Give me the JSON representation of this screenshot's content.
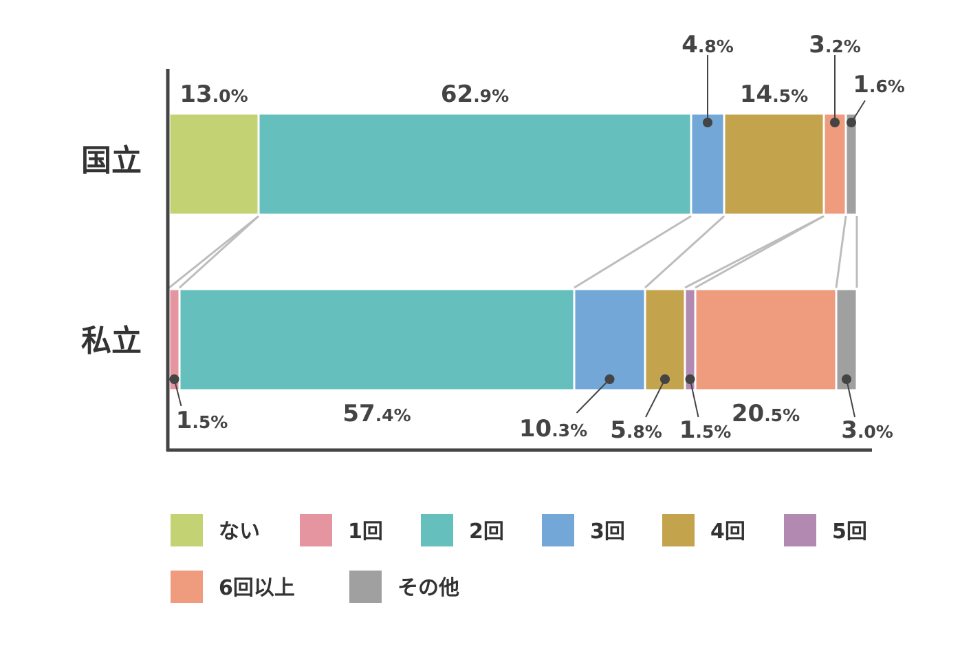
{
  "chart_data": {
    "type": "bar",
    "stacked": true,
    "orientation": "horizontal",
    "normalized_to": 100,
    "unit": "%",
    "categories": [
      "国立",
      "私立"
    ],
    "series": [
      {
        "name": "ない",
        "color": "#c3d373",
        "values": [
          13.0,
          0.0
        ]
      },
      {
        "name": "1回",
        "color": "#e5959f",
        "values": [
          0.0,
          1.5
        ]
      },
      {
        "name": "2回",
        "color": "#65bfbc",
        "values": [
          62.9,
          57.4
        ]
      },
      {
        "name": "3回",
        "color": "#72a7d7",
        "values": [
          4.8,
          10.3
        ]
      },
      {
        "name": "4回",
        "color": "#c3a34c",
        "values": [
          14.5,
          5.8
        ]
      },
      {
        "name": "5回",
        "color": "#b189b1",
        "values": [
          0.0,
          1.5
        ]
      },
      {
        "name": "6回以上",
        "color": "#ef9b7d",
        "values": [
          3.2,
          20.5
        ]
      },
      {
        "name": "その他",
        "color": "#a0a0a0",
        "values": [
          1.6,
          3.0
        ]
      }
    ],
    "value_labels": [
      [
        {
          "series": 0,
          "int": "13",
          "dec": ".0%"
        },
        {
          "series": 2,
          "int": "62",
          "dec": ".9%"
        },
        {
          "series": 3,
          "int": "4",
          "dec": ".8%"
        },
        {
          "series": 4,
          "int": "14",
          "dec": ".5%"
        },
        {
          "series": 6,
          "int": "3",
          "dec": ".2%"
        },
        {
          "series": 7,
          "int": "1",
          "dec": ".6%"
        }
      ],
      [
        {
          "series": 1,
          "int": "1",
          "dec": ".5%"
        },
        {
          "series": 2,
          "int": "57",
          "dec": ".4%"
        },
        {
          "series": 3,
          "int": "10",
          "dec": ".3%"
        },
        {
          "series": 4,
          "int": "5",
          "dec": ".8%"
        },
        {
          "series": 5,
          "int": "1",
          "dec": ".5%"
        },
        {
          "series": 6,
          "int": "20",
          "dec": ".5%"
        },
        {
          "series": 7,
          "int": "3",
          "dec": ".0%"
        }
      ]
    ],
    "legend_position": "bottom",
    "grid": false
  }
}
